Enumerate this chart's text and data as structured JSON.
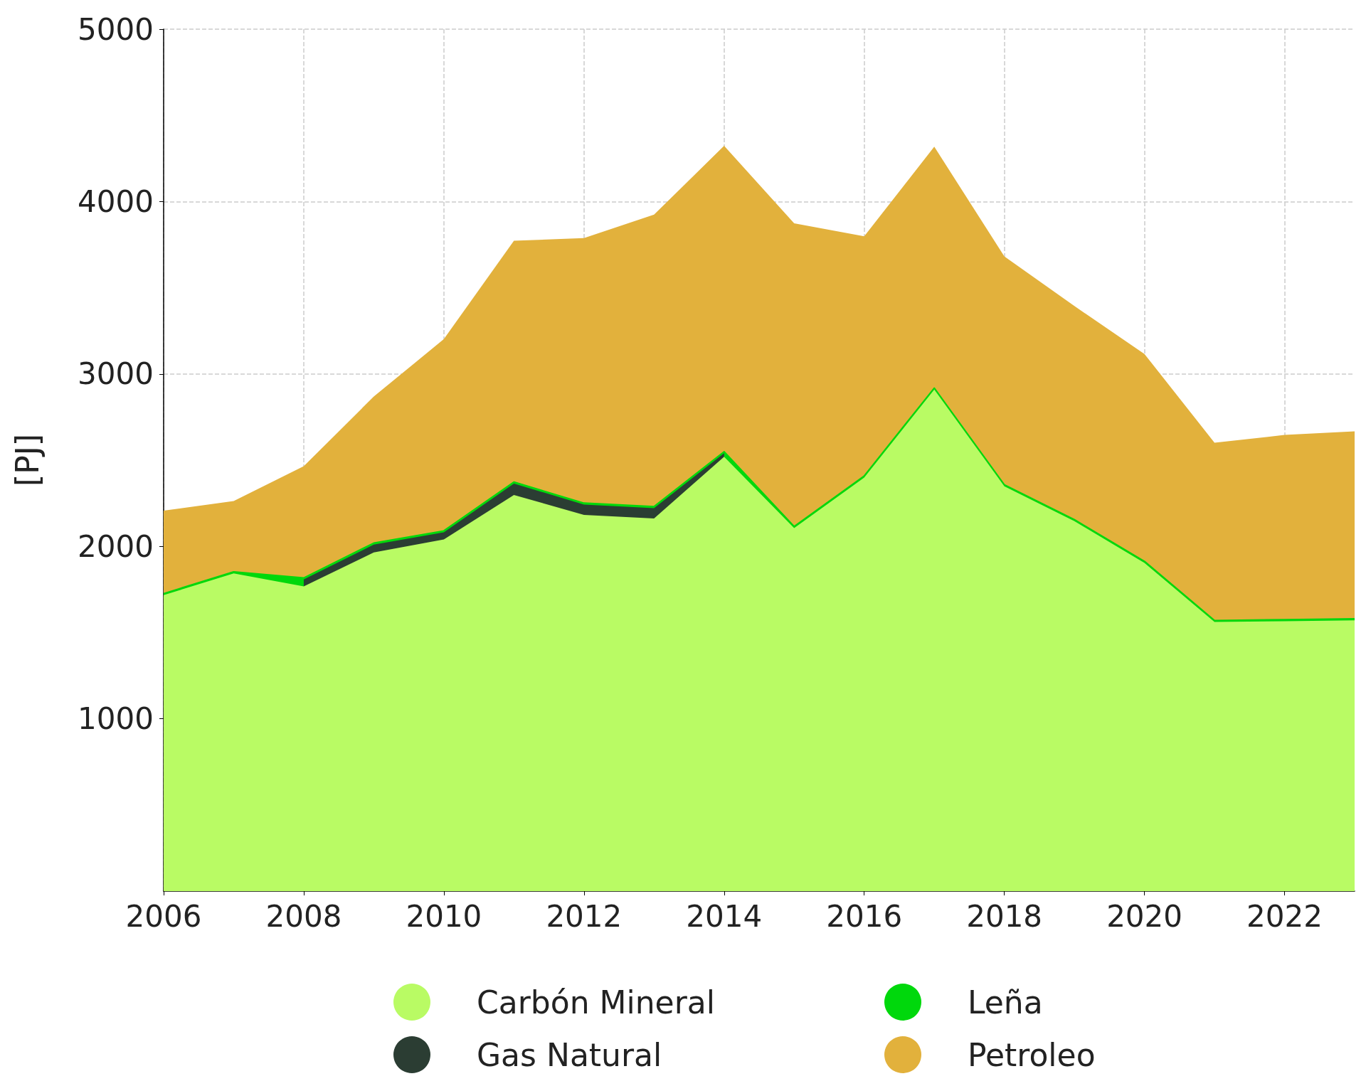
{
  "chart_data": {
    "type": "area",
    "stacked": true,
    "ylabel": "[PJ]",
    "x": [
      2006,
      2007,
      2008,
      2009,
      2010,
      2011,
      2012,
      2013,
      2014,
      2015,
      2016,
      2017,
      2018,
      2019,
      2020,
      2021,
      2022,
      2023
    ],
    "series": [
      {
        "name": "Carbón Mineral",
        "color": "#b9fb64",
        "values": [
          1717,
          1843,
          1768,
          1965,
          2040,
          2298,
          2182,
          2162,
          2520,
          2106,
          2399,
          2909,
          2348,
          2146,
          1904,
          1561,
          1566,
          1571
        ]
      },
      {
        "name": "Gas Natural",
        "color": "#2b3d33",
        "values": [
          null,
          null,
          40,
          45,
          41,
          66,
          60,
          60,
          20,
          null,
          null,
          null,
          null,
          null,
          null,
          null,
          null,
          null
        ]
      },
      {
        "name": "Leña",
        "color": "#00d80c",
        "values": [
          8,
          8,
          8,
          8,
          8,
          8,
          8,
          8,
          8,
          8,
          8,
          8,
          8,
          8,
          8,
          8,
          8,
          8
        ]
      },
      {
        "name": "Petroleo",
        "color": "#e2b13c",
        "values": [
          482,
          412,
          649,
          851,
          1113,
          1401,
          1538,
          1694,
          1775,
          1760,
          1391,
          1401,
          1326,
          1240,
          1204,
          1032,
          1072,
          1088
        ]
      }
    ],
    "xlim": [
      2006,
      2023
    ],
    "xticks": [
      2006,
      2008,
      2010,
      2012,
      2014,
      2016,
      2018,
      2020,
      2022
    ],
    "ylim": [
      0,
      5000
    ],
    "yticks": [
      1000,
      2000,
      3000,
      4000,
      5000
    ],
    "grid": true,
    "legend": "bottom",
    "marker": "none"
  }
}
